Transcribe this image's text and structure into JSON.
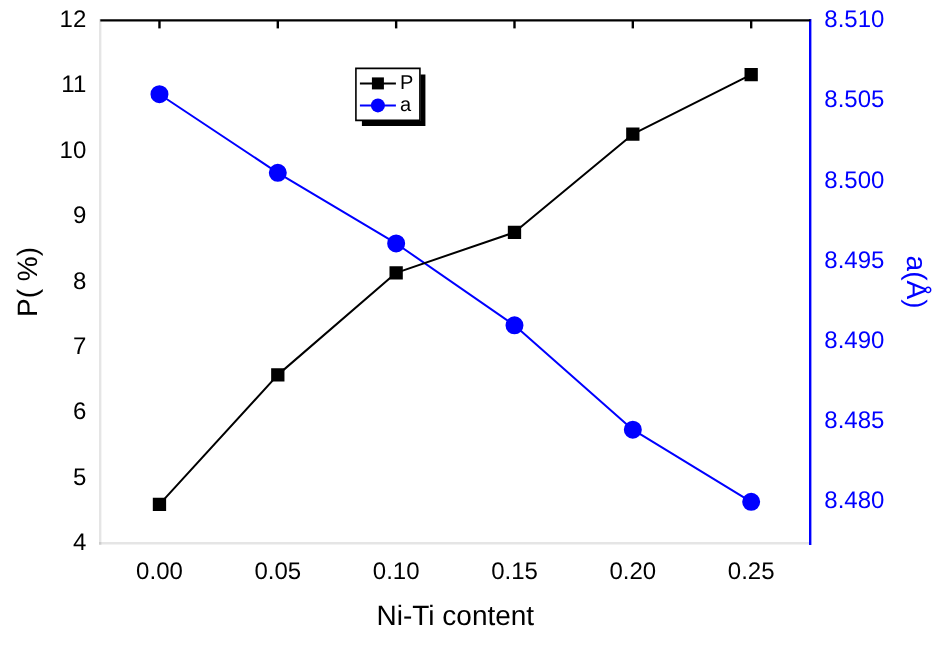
{
  "chart_data": {
    "type": "line",
    "xlabel": "Ni-Ti content",
    "ylabel": "P( %)",
    "y2label": "a(Å)",
    "x": [
      0,
      0.05,
      0.1,
      0.15,
      0.2,
      0.25
    ],
    "series": [
      {
        "name": "P",
        "color": "#000000",
        "marker": "square",
        "values": [
          4.6,
          6.58,
          8.14,
          8.76,
          10.26,
          11.17
        ]
      },
      {
        "name": "a",
        "color": "#0000ff",
        "marker": "circle",
        "axis": "y2",
        "values": [
          8.5054,
          8.5005,
          8.4961,
          8.491,
          8.4845,
          8.48
        ]
      }
    ],
    "xlim": [
      -0.025,
      0.275
    ],
    "xticks": [
      {
        "value": 0,
        "label": "0.00"
      },
      0.05,
      {
        "value": 0.1,
        "label": "0.10"
      },
      0.15,
      {
        "value": 0.2,
        "label": "0.20"
      },
      0.25
    ],
    "ylim": [
      4,
      12
    ],
    "yticks": [
      4,
      5,
      6,
      7,
      8,
      9,
      10,
      11,
      12
    ],
    "y2lim": [
      8.4774,
      8.51
    ],
    "y2ticks": [
      {
        "value": 8.48,
        "label": "8.480"
      },
      8.485,
      {
        "value": 8.49,
        "label": "8.490"
      },
      8.495,
      {
        "value": 8.5,
        "label": "8.500"
      },
      8.505,
      {
        "value": 8.51,
        "label": "8.510"
      }
    ],
    "legend": "top",
    "grid": false
  }
}
